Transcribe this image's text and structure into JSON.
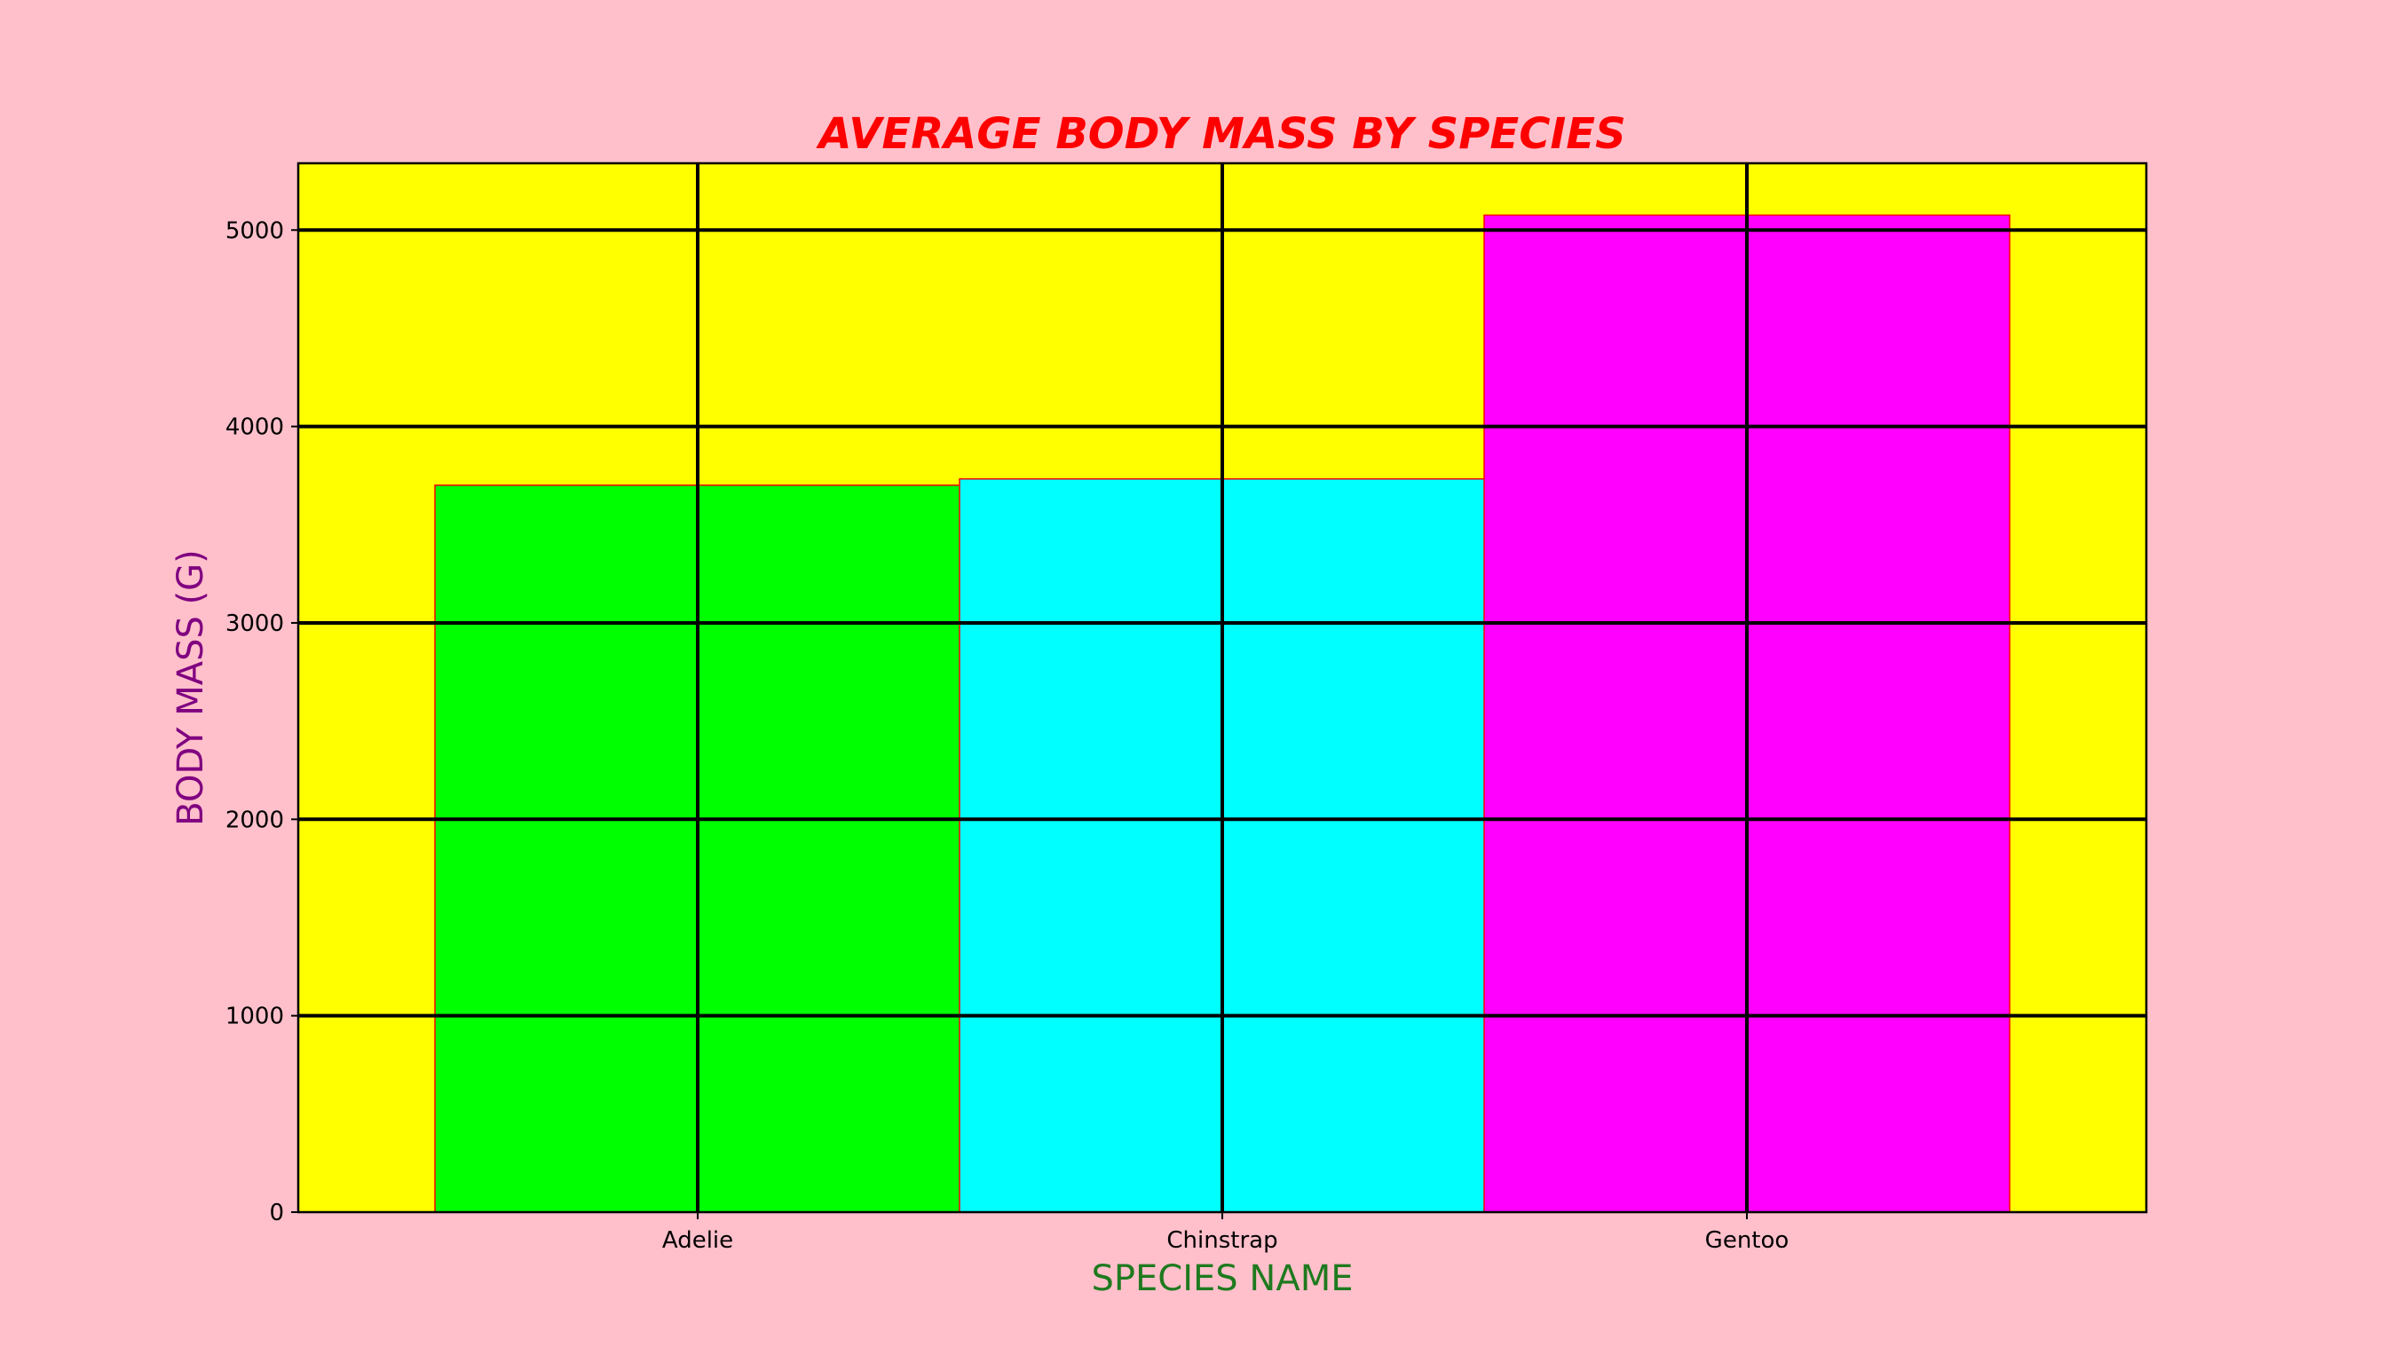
{
  "chart_data": {
    "type": "bar",
    "title": "AVERAGE BODY MASS BY SPECIES",
    "xlabel": "SPECIES NAME",
    "ylabel": "BODY MASS (G)",
    "categories": [
      "Adelie",
      "Chinstrap",
      "Gentoo"
    ],
    "values": [
      3701,
      3733,
      5076
    ],
    "ylim": [
      0,
      5340
    ],
    "yticks": [
      0,
      1000,
      2000,
      3000,
      4000,
      5000
    ],
    "grid": true,
    "colors": {
      "figure_background": "#ffc0cb",
      "plot_background": "#ffff00",
      "bars": [
        "#00ff00",
        "#00ffff",
        "#ff00ff"
      ],
      "bar_edge": "#ff0000",
      "grid": "#000000",
      "title": "#ff0000",
      "xlabel": "#1f7a1f",
      "ylabel": "#800080"
    }
  }
}
